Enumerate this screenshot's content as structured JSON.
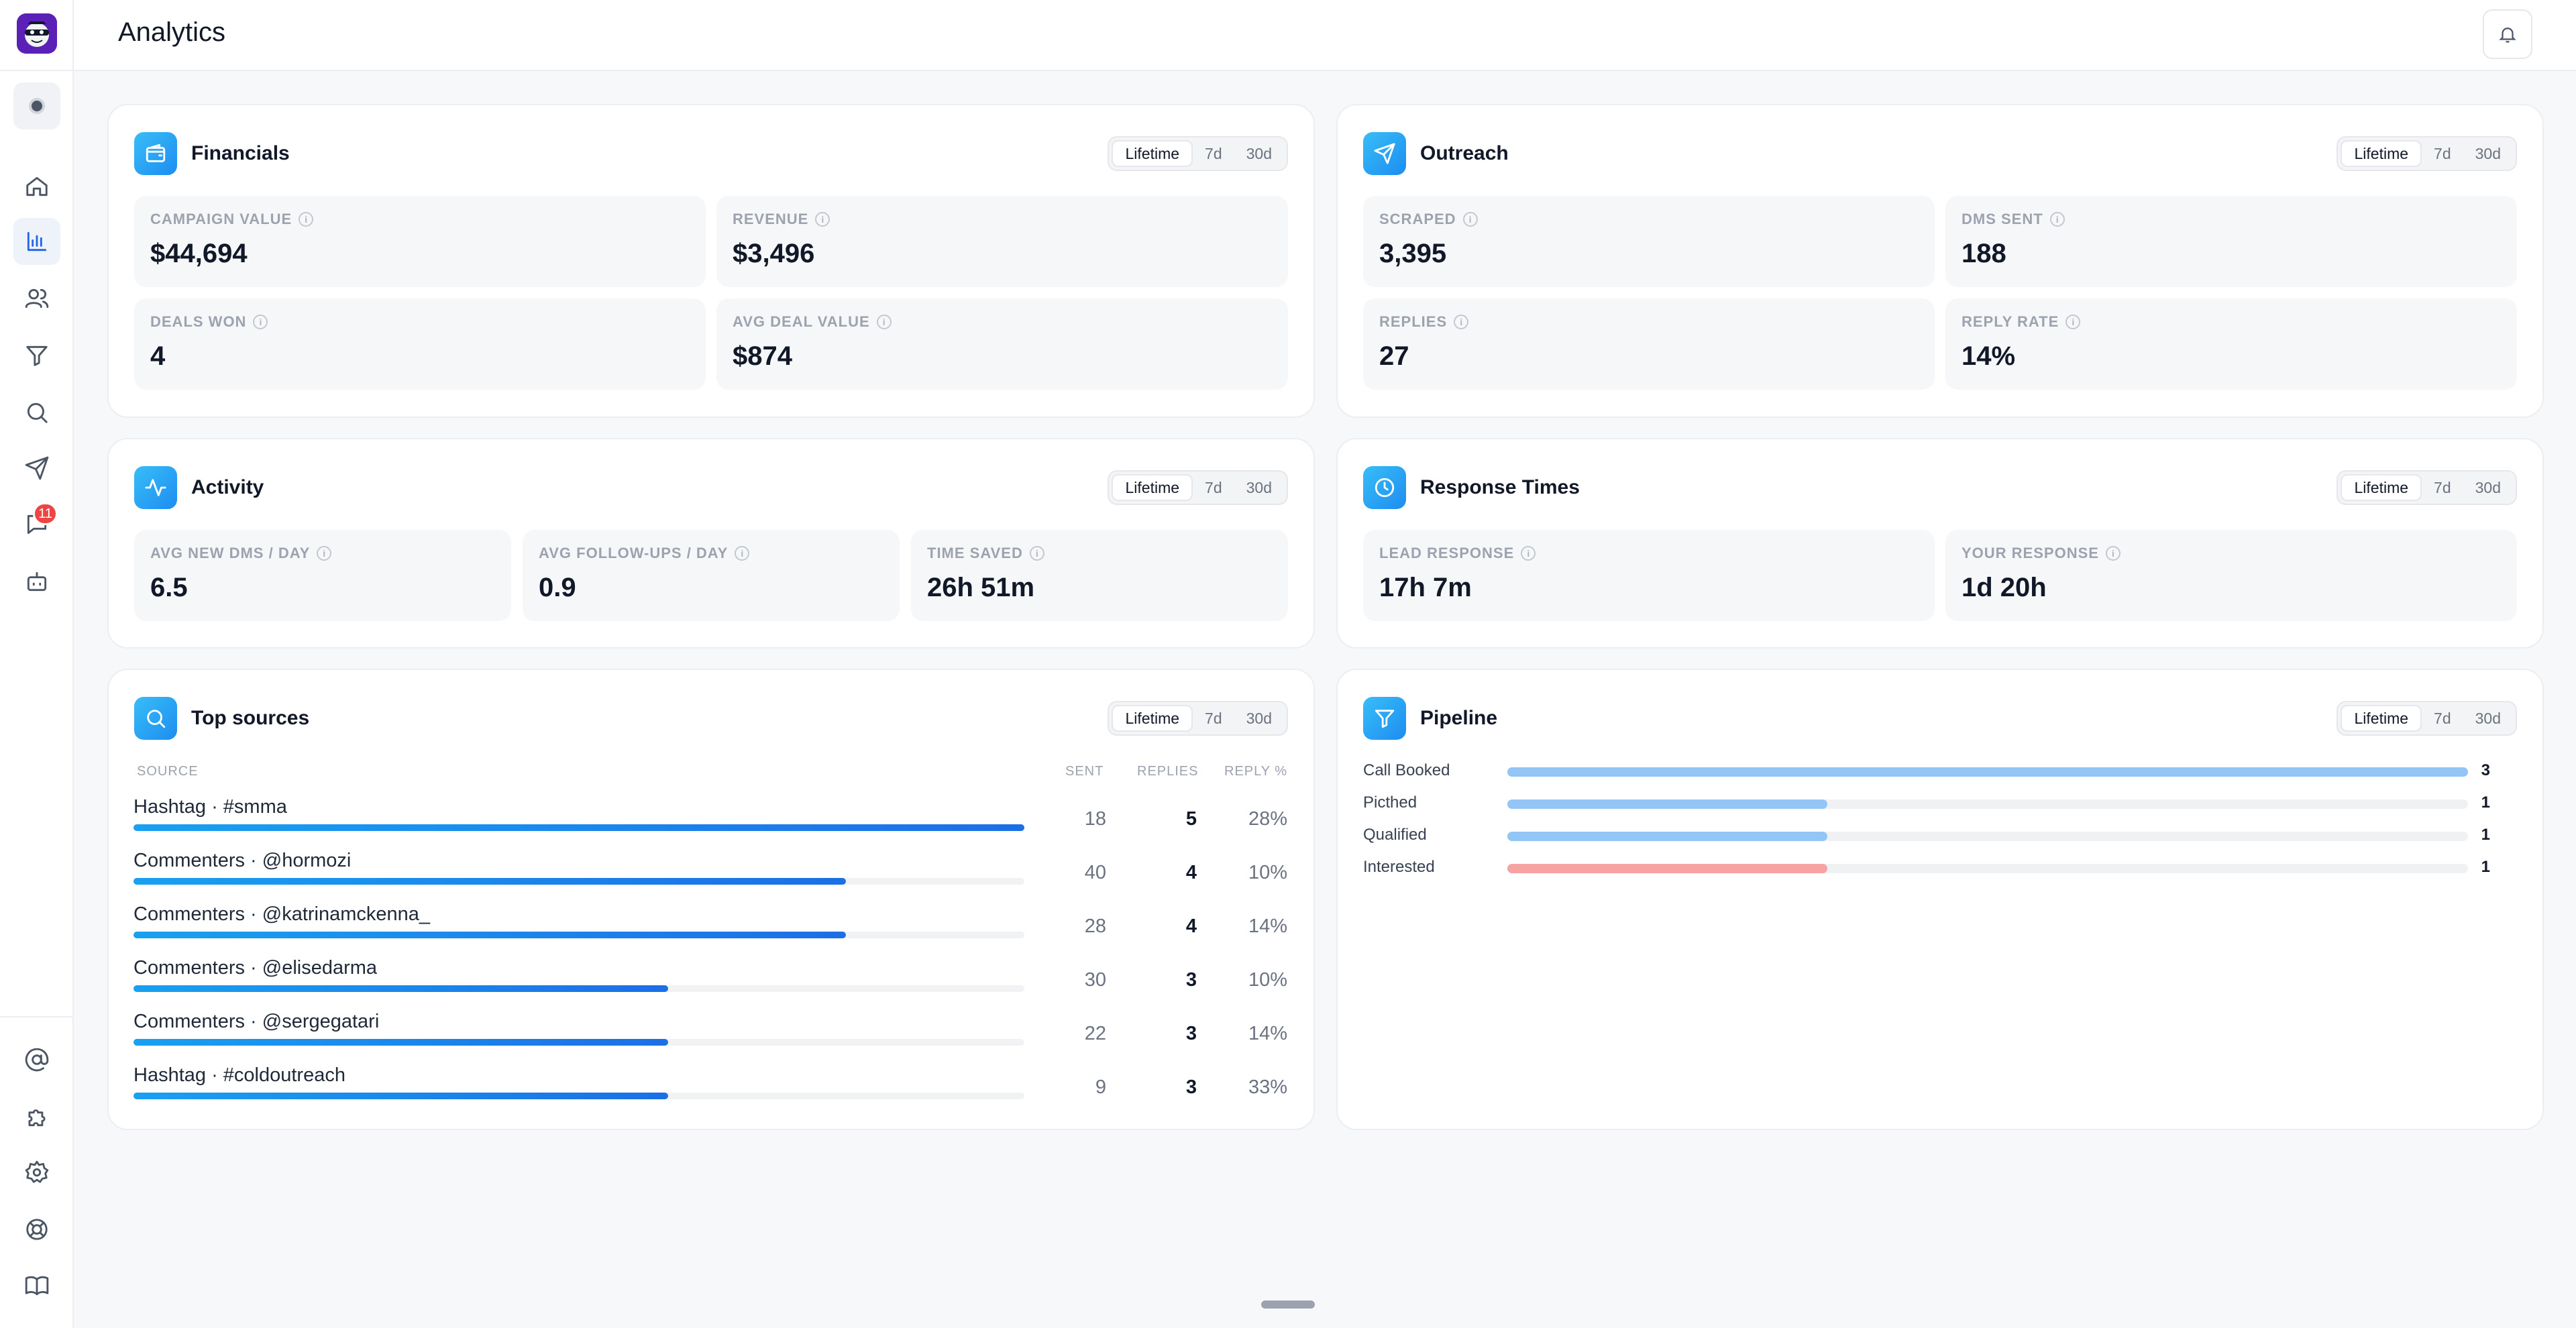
{
  "header": {
    "title": "Analytics"
  },
  "sidebar": {
    "badge_count": "11"
  },
  "segments": [
    "Lifetime",
    "7d",
    "30d"
  ],
  "financials": {
    "title": "Financials",
    "stats": [
      {
        "label": "CAMPAIGN VALUE",
        "value": "$44,694"
      },
      {
        "label": "REVENUE",
        "value": "$3,496"
      },
      {
        "label": "DEALS WON",
        "value": "4"
      },
      {
        "label": "AVG DEAL VALUE",
        "value": "$874"
      }
    ]
  },
  "outreach": {
    "title": "Outreach",
    "stats": [
      {
        "label": "SCRAPED",
        "value": "3,395"
      },
      {
        "label": "DMS SENT",
        "value": "188"
      },
      {
        "label": "REPLIES",
        "value": "27"
      },
      {
        "label": "REPLY RATE",
        "value": "14%"
      }
    ]
  },
  "activity": {
    "title": "Activity",
    "stats": [
      {
        "label": "AVG NEW DMS / DAY",
        "value": "6.5"
      },
      {
        "label": "AVG FOLLOW-UPS / DAY",
        "value": "0.9"
      },
      {
        "label": "TIME SAVED",
        "value": "26h 51m"
      }
    ]
  },
  "response_times": {
    "title": "Response Times",
    "stats": [
      {
        "label": "LEAD RESPONSE",
        "value": "17h 7m"
      },
      {
        "label": "YOUR RESPONSE",
        "value": "1d 20h"
      }
    ]
  },
  "top_sources": {
    "title": "Top sources",
    "columns": [
      "SOURCE",
      "SENT",
      "REPLIES",
      "REPLY %"
    ],
    "rows": [
      {
        "source": "Hashtag · #smma",
        "sent": "18",
        "replies": "5",
        "reply_pct": "28%",
        "bar_fraction": 1.0
      },
      {
        "source": "Commenters · @hormozi",
        "sent": "40",
        "replies": "4",
        "reply_pct": "10%",
        "bar_fraction": 0.8
      },
      {
        "source": "Commenters · @katrinamckenna_",
        "sent": "28",
        "replies": "4",
        "reply_pct": "14%",
        "bar_fraction": 0.8
      },
      {
        "source": "Commenters · @elisedarma",
        "sent": "30",
        "replies": "3",
        "reply_pct": "10%",
        "bar_fraction": 0.6
      },
      {
        "source": "Commenters · @sergegatari",
        "sent": "22",
        "replies": "3",
        "reply_pct": "14%",
        "bar_fraction": 0.6
      },
      {
        "source": "Hashtag · #coldoutreach",
        "sent": "9",
        "replies": "3",
        "reply_pct": "33%",
        "bar_fraction": 0.6
      }
    ]
  },
  "pipeline": {
    "title": "Pipeline",
    "max": 3,
    "rows": [
      {
        "label": "Call Booked",
        "value": "3",
        "count": 3,
        "color": "#93c5f7"
      },
      {
        "label": "Picthed",
        "value": "1",
        "count": 1,
        "color": "#93c5f7"
      },
      {
        "label": "Qualified",
        "value": "1",
        "count": 1,
        "color": "#93c5f7"
      },
      {
        "label": "Interested",
        "value": "1",
        "count": 1,
        "color": "#f5a3a3"
      }
    ]
  }
}
